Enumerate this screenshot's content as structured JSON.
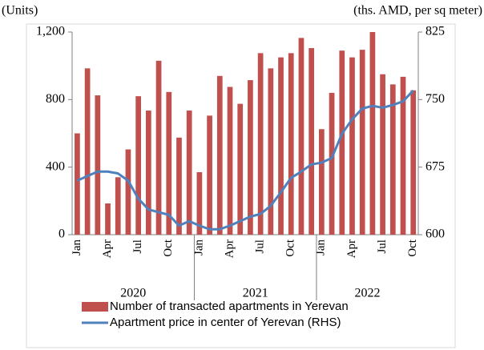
{
  "chart_data": {
    "type": "bar-line",
    "y_label": "(Units)",
    "y2_label": "(ths. AMD, per sq meter)",
    "categories": [
      "Jan",
      null,
      null,
      "Apr",
      null,
      null,
      "Jul",
      null,
      null,
      "Oct",
      null,
      null,
      "Jan",
      null,
      null,
      "Apr",
      null,
      null,
      "Jul",
      null,
      null,
      "Oct",
      null,
      null,
      "Jan",
      null,
      null,
      "Apr",
      null,
      null,
      "Jul",
      null,
      null,
      "Oct"
    ],
    "years": [
      "2020",
      "2021",
      "2022"
    ],
    "series": [
      {
        "name": "Number of transacted apartments in Yerevan",
        "type": "bar",
        "color": "#c0504d",
        "values": [
          600,
          985,
          825,
          185,
          340,
          505,
          820,
          735,
          1030,
          845,
          575,
          735,
          370,
          705,
          940,
          875,
          775,
          915,
          1075,
          985,
          1050,
          1075,
          1165,
          1105,
          625,
          840,
          1090,
          1050,
          1095,
          1200,
          950,
          890,
          935,
          855
        ]
      },
      {
        "name": "Apartment price in center of Yerevan (RHS)",
        "type": "line",
        "axis": "y2",
        "color": "#4f81bd",
        "values": [
          660,
          665,
          670,
          670,
          668,
          660,
          640,
          628,
          625,
          622,
          610,
          615,
          610,
          606,
          606,
          610,
          615,
          620,
          623,
          632,
          647,
          663,
          670,
          678,
          680,
          685,
          712,
          728,
          740,
          743,
          741,
          744,
          748,
          760
        ]
      }
    ],
    "ylim": [
      0,
      1200
    ],
    "yticks": [
      0,
      400,
      800,
      {
        "value": 1200,
        "label": "1,200"
      }
    ],
    "y2lim": [
      600,
      825
    ],
    "y2ticks": [
      600,
      675,
      750,
      825
    ]
  }
}
